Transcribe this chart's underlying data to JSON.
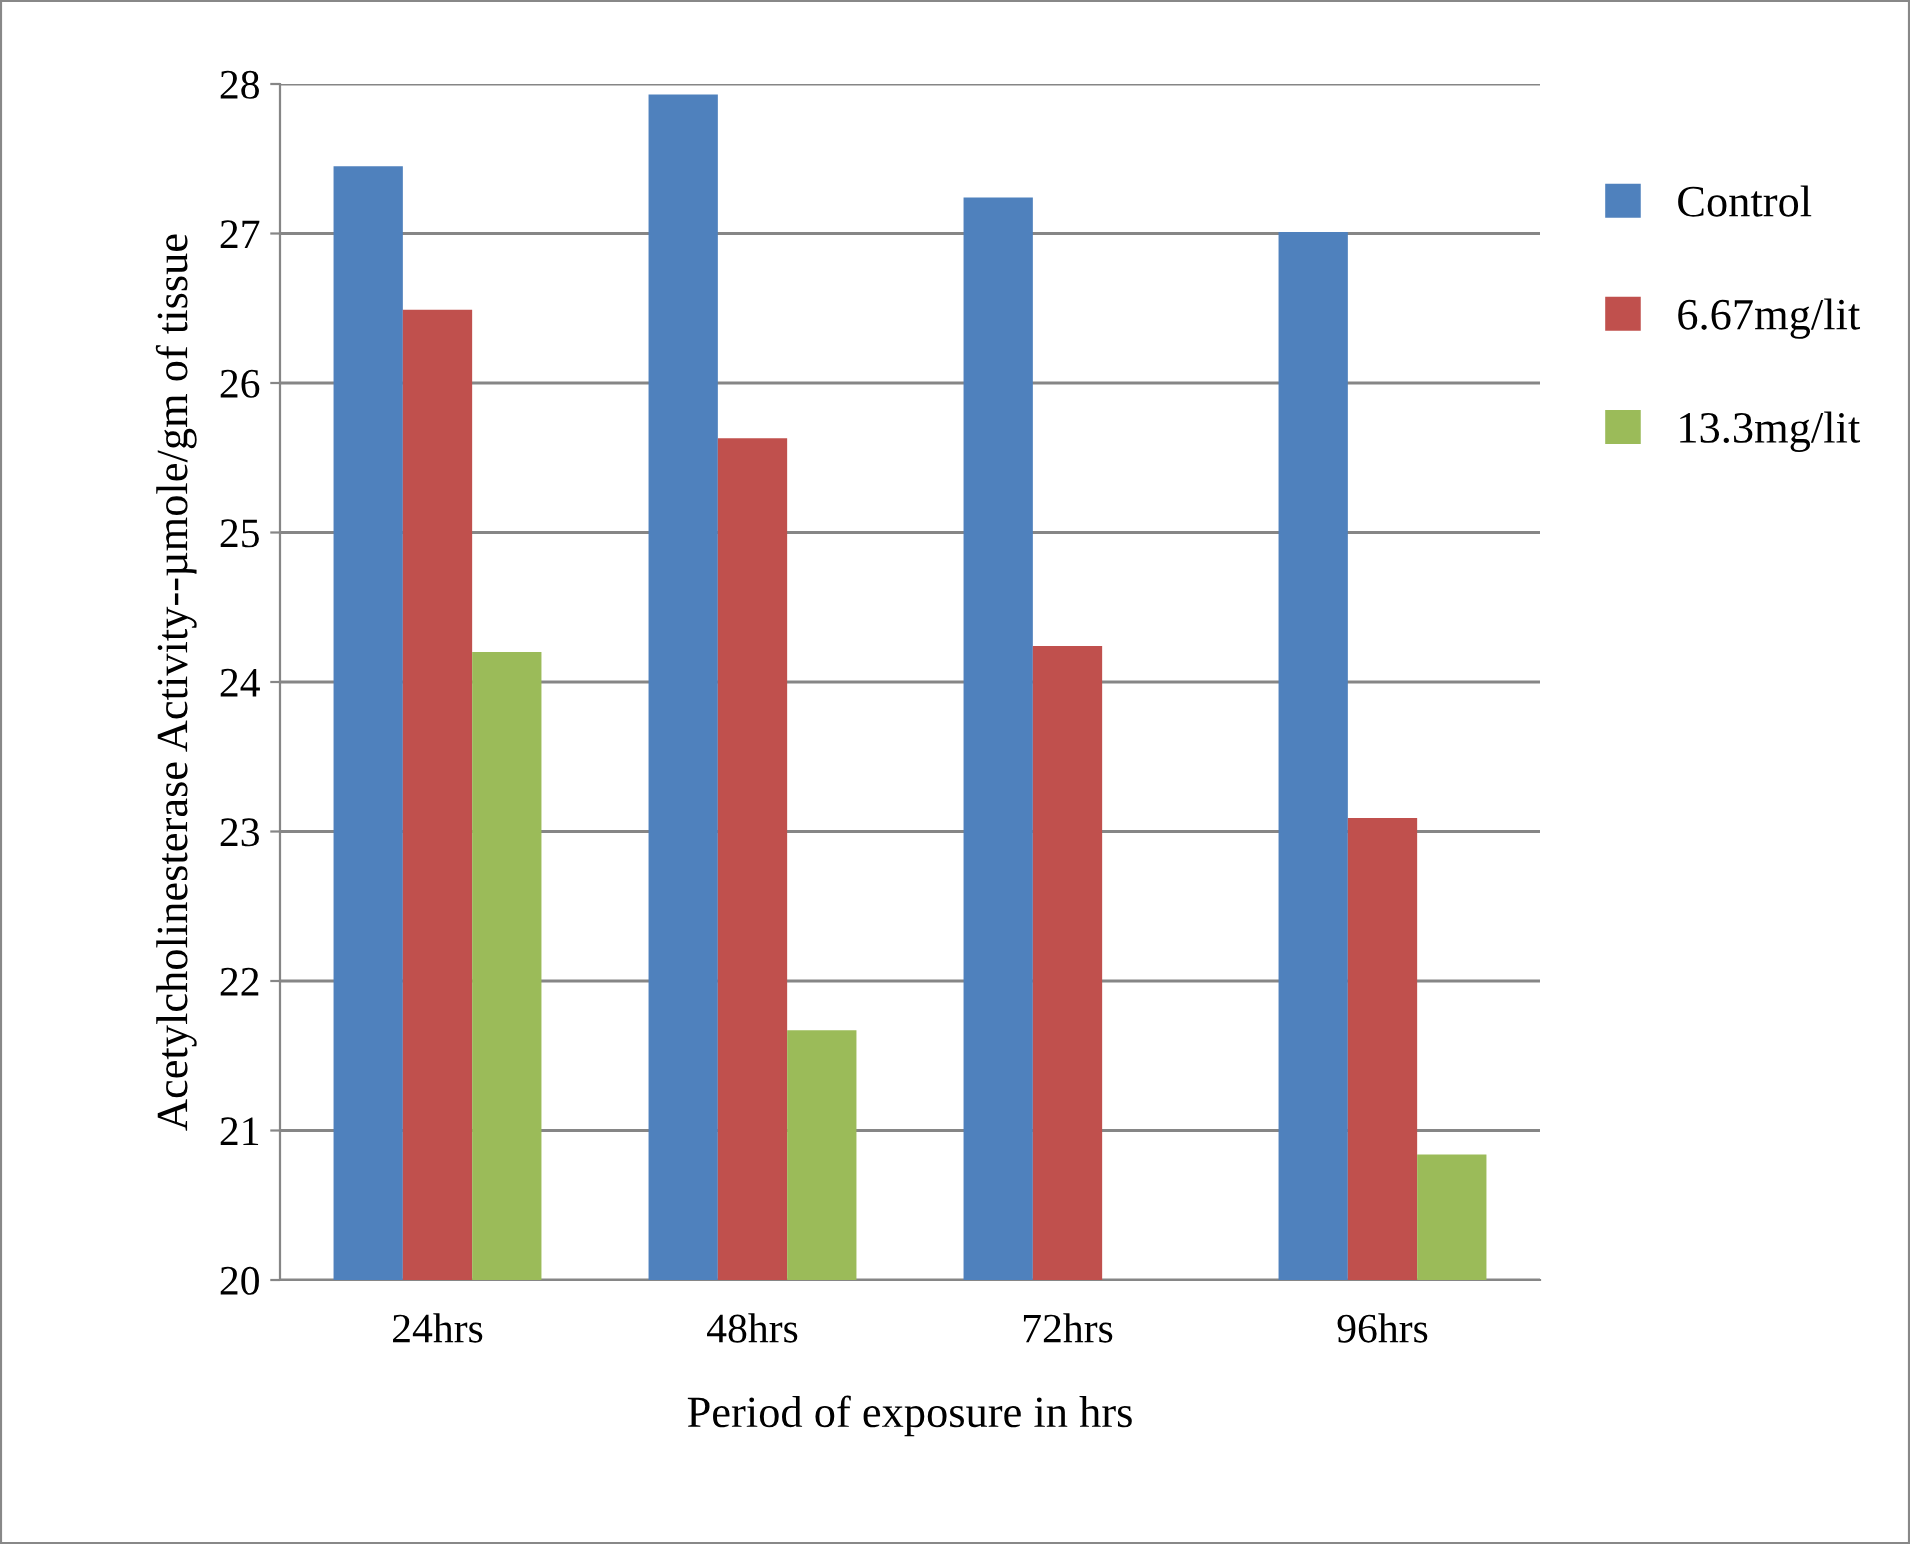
{
  "chart_data": {
    "type": "bar",
    "xlabel": "Period of exposure in hrs",
    "ylabel": "Acetylcholinesterase Activity--µmole/gm of tissue",
    "categories": [
      "24hrs",
      "48hrs",
      "72hrs",
      "96hrs"
    ],
    "series": [
      {
        "name": "Control",
        "color": "#4f81bd",
        "values": [
          27.45,
          27.93,
          27.24,
          27.01
        ]
      },
      {
        "name": "6.67mg/lit",
        "color": "#c0504d",
        "values": [
          26.49,
          25.63,
          24.24,
          23.09
        ]
      },
      {
        "name": "13.3mg/lit",
        "color": "#9bbb59",
        "values": [
          24.2,
          21.67,
          null,
          20.84
        ]
      }
    ],
    "ylim": [
      20,
      28
    ],
    "yticks": [
      20,
      21,
      22,
      23,
      24,
      25,
      26,
      27,
      28
    ],
    "grid": "y",
    "legend": "right"
  }
}
